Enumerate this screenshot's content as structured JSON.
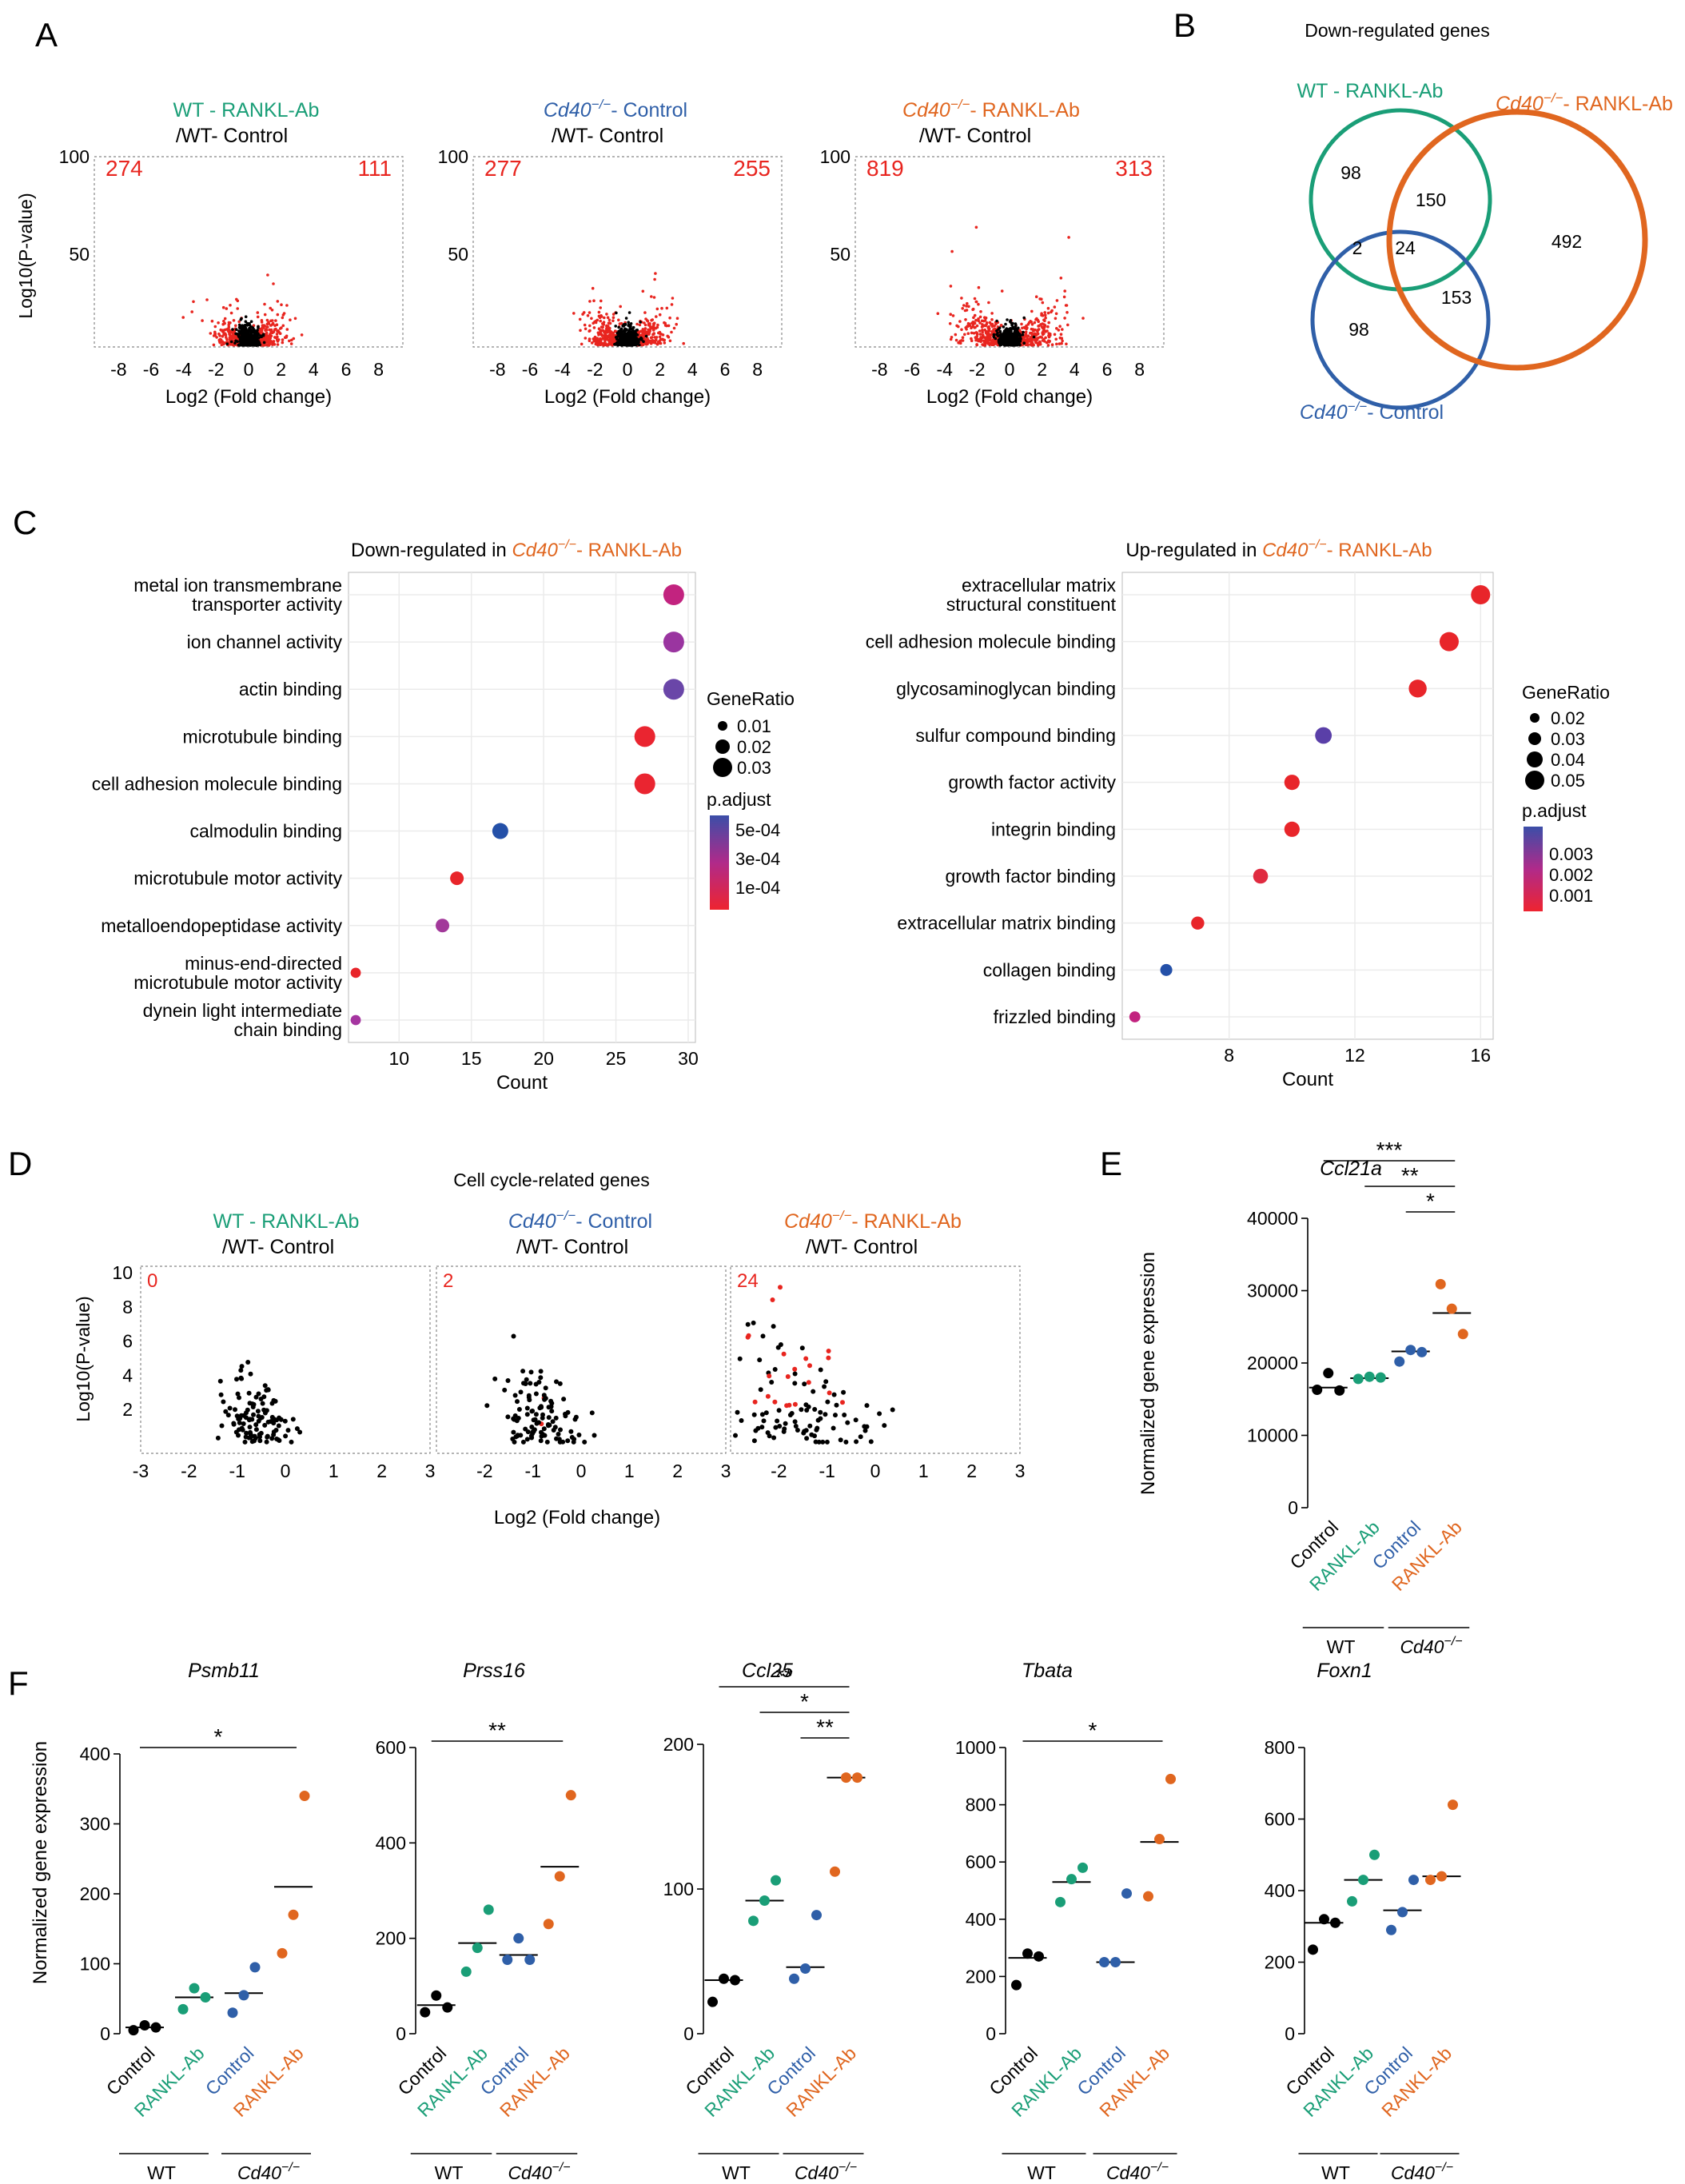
{
  "colors": {
    "wt_rankl": "#1a9e77",
    "cd40_ctrl": "#2f5fa8",
    "cd40_rankl": "#e0661f",
    "red": "#e8251f",
    "black": "#000000",
    "grid": "#ebebeb",
    "sig_line": "#000000"
  },
  "panels": {
    "A": "A",
    "B": "B",
    "C": "C",
    "D": "D",
    "E": "E",
    "F": "F"
  },
  "labels": {
    "wt_rankl": "WT - RANKL-Ab",
    "wt_ctrl_suffix": "/WT- Control",
    "cd40": "Cd40",
    "ko_sup": "−/−",
    "control_suffix": "- Control",
    "rankl_suffix": "- RANKL-Ab",
    "log2fc": "Log2 (Fold change)",
    "log10p_A": "Log10(P-value)",
    "log10p_D": "Log10(P-value)",
    "normalized": "Normalized gene expression",
    "control": "Control",
    "rankl_ab": "RANKL-Ab",
    "wt": "WT",
    "down_in": "Down-regulated in ",
    "up_in": "Up-regulated in ",
    "count": "Count",
    "gene_ratio": "GeneRatio",
    "p_adjust": "p.adjust",
    "venn_title": "Down-regulated genes",
    "cell_cycle_title": "Cell cycle-related genes"
  },
  "volcano_A": [
    {
      "left_count": "274",
      "right_count": "111"
    },
    {
      "left_count": "277",
      "right_count": "255"
    },
    {
      "left_count": "819",
      "right_count": "313"
    }
  ],
  "volcano_A_axis": {
    "x_ticks": [
      "-8",
      "-6",
      "-4",
      "-2",
      "0",
      "2",
      "4",
      "6",
      "8"
    ],
    "y_ticks": [
      "100",
      "50"
    ]
  },
  "venn": {
    "wt_only": "98",
    "wt_cd40rankl": "150",
    "cd40rankl_only": "492",
    "wt_ctrl": "2",
    "all_three": "24",
    "ctrl_cd40rankl": "153",
    "ctrl_only": "98"
  },
  "chart_data": [
    {
      "type": "scatter",
      "title": "Down-regulated in Cd40-/- - RANKL-Ab",
      "xlabel": "Count",
      "x_ticks": [
        "10",
        "15",
        "20",
        "25",
        "30"
      ],
      "xlim": [
        6.5,
        30.5
      ],
      "terms": [
        {
          "term": "metal ion transmembrane",
          "term2": "transporter activity",
          "count": 29,
          "ratio": 0.03,
          "color": "#c2237f"
        },
        {
          "term": "ion channel activity",
          "count": 29,
          "ratio": 0.03,
          "color": "#9a35a0"
        },
        {
          "term": "actin binding",
          "count": 29,
          "ratio": 0.03,
          "color": "#6a46a8"
        },
        {
          "term": "microtubule binding",
          "count": 27,
          "ratio": 0.03,
          "color": "#ea2530"
        },
        {
          "term": "cell adhesion molecule binding",
          "count": 27,
          "ratio": 0.03,
          "color": "#ea2530"
        },
        {
          "term": "calmodulin binding",
          "count": 17,
          "ratio": 0.02,
          "color": "#2450a8"
        },
        {
          "term": "microtubule motor activity",
          "count": 14,
          "ratio": 0.015,
          "color": "#e8252a"
        },
        {
          "term": "metalloendopeptidase activity",
          "count": 13,
          "ratio": 0.015,
          "color": "#a2389a"
        },
        {
          "term": "minus-end-directed",
          "term2": "microtubule motor activity",
          "count": 7,
          "ratio": 0.008,
          "color": "#e8252a"
        },
        {
          "term": "dynein light intermediate",
          "term2": "chain binding",
          "count": 7,
          "ratio": 0.008,
          "color": "#a535a0"
        }
      ],
      "legend_sizes": [
        "0.01",
        "0.02",
        "0.03"
      ],
      "legend_colors": [
        "5e-04",
        "3e-04",
        "1e-04"
      ]
    },
    {
      "type": "scatter",
      "title": "Up-regulated in Cd40-/- - RANKL-Ab",
      "xlabel": "Count",
      "x_ticks": [
        "8",
        "12",
        "16"
      ],
      "xlim": [
        4.6,
        16.4
      ],
      "terms": [
        {
          "term": "extracellular matrix",
          "term2": "structural constituent",
          "count": 16,
          "ratio": 0.05,
          "color": "#e8252a"
        },
        {
          "term": "cell adhesion molecule binding",
          "count": 15,
          "ratio": 0.05,
          "color": "#e8252a"
        },
        {
          "term": "glycosaminoglycan binding",
          "count": 14,
          "ratio": 0.045,
          "color": "#e8252a"
        },
        {
          "term": "sulfur compound binding",
          "count": 11,
          "ratio": 0.04,
          "color": "#5a3fa8"
        },
        {
          "term": "growth factor activity",
          "count": 10,
          "ratio": 0.035,
          "color": "#e8252a"
        },
        {
          "term": "integrin binding",
          "count": 10,
          "ratio": 0.035,
          "color": "#e8252a"
        },
        {
          "term": "growth factor binding",
          "count": 9,
          "ratio": 0.033,
          "color": "#e02b40"
        },
        {
          "term": "extracellular matrix binding",
          "count": 7,
          "ratio": 0.026,
          "color": "#e8252a"
        },
        {
          "term": "collagen binding",
          "count": 6,
          "ratio": 0.022,
          "color": "#2450a8"
        },
        {
          "term": "frizzled binding",
          "count": 5,
          "ratio": 0.018,
          "color": "#c2237f"
        }
      ],
      "legend_sizes": [
        "0.02",
        "0.03",
        "0.04",
        "0.05"
      ],
      "legend_colors": [
        "0.003",
        "0.002",
        "0.001"
      ]
    },
    {
      "type": "strip",
      "gene": "Ccl21a",
      "ylabel": "Normalized gene expression",
      "ylim": [
        0,
        40000
      ],
      "y_ticks": [
        0,
        10000,
        20000,
        30000,
        40000
      ],
      "groups": [
        {
          "name": "Control",
          "genotype": "WT",
          "values": [
            16300,
            18600,
            16200
          ],
          "mean": 16600,
          "color": "#000000"
        },
        {
          "name": "RANKL-Ab",
          "genotype": "WT",
          "values": [
            17800,
            18100,
            18000
          ],
          "mean": 17900,
          "color": "#1a9e77"
        },
        {
          "name": "Control",
          "genotype": "Cd40-/-",
          "values": [
            20200,
            21800,
            21500
          ],
          "mean": 21600,
          "color": "#2f5fa8"
        },
        {
          "name": "RANKL-Ab",
          "genotype": "Cd40-/-",
          "values": [
            30900,
            27500,
            24000
          ],
          "mean": 26900,
          "color": "#e0661f"
        }
      ],
      "sig": [
        {
          "from": 0,
          "to": 3,
          "label": "***"
        },
        {
          "from": 1,
          "to": 3,
          "label": "**"
        },
        {
          "from": 2,
          "to": 3,
          "label": "*"
        }
      ]
    },
    {
      "type": "strip",
      "gene": "Psmb11",
      "ylim": [
        0,
        400
      ],
      "y_ticks": [
        0,
        100,
        200,
        300,
        400
      ],
      "groups": [
        {
          "name": "Control",
          "values": [
            5,
            12,
            9
          ],
          "mean": 9,
          "color": "#000000"
        },
        {
          "name": "RANKL-Ab",
          "values": [
            35,
            65,
            52
          ],
          "mean": 52,
          "color": "#1a9e77"
        },
        {
          "name": "Control",
          "values": [
            30,
            55,
            95
          ],
          "mean": 58,
          "color": "#2f5fa8"
        },
        {
          "name": "RANKL-Ab",
          "values": [
            115,
            170,
            340
          ],
          "mean": 210,
          "color": "#e0661f"
        }
      ],
      "sig": [
        {
          "from": 0,
          "to": 3,
          "label": "*"
        }
      ]
    },
    {
      "type": "strip",
      "gene": "Prss16",
      "ylim": [
        0,
        600
      ],
      "y_ticks": [
        0,
        200,
        400,
        600
      ],
      "groups": [
        {
          "name": "Control",
          "values": [
            45,
            80,
            55
          ],
          "mean": 60,
          "color": "#000000"
        },
        {
          "name": "RANKL-Ab",
          "values": [
            130,
            180,
            260
          ],
          "mean": 190,
          "color": "#1a9e77"
        },
        {
          "name": "Control",
          "values": [
            155,
            200,
            155
          ],
          "mean": 165,
          "color": "#2f5fa8"
        },
        {
          "name": "RANKL-Ab",
          "values": [
            230,
            330,
            500
          ],
          "mean": 350,
          "color": "#e0661f"
        }
      ],
      "sig": [
        {
          "from": 0,
          "to": 3,
          "label": "**"
        }
      ]
    },
    {
      "type": "strip",
      "gene": "Ccl25",
      "ylim": [
        0,
        200
      ],
      "y_ticks": [
        0,
        100,
        200
      ],
      "groups": [
        {
          "name": "Control",
          "values": [
            22,
            38,
            37
          ],
          "mean": 37,
          "color": "#000000"
        },
        {
          "name": "RANKL-Ab",
          "values": [
            78,
            92,
            106
          ],
          "mean": 92,
          "color": "#1a9e77"
        },
        {
          "name": "Control",
          "values": [
            38,
            45,
            82
          ],
          "mean": 46,
          "color": "#2f5fa8"
        },
        {
          "name": "RANKL-Ab",
          "values": [
            112,
            177,
            177
          ],
          "mean": 177,
          "color": "#e0661f"
        }
      ],
      "sig": [
        {
          "from": 0,
          "to": 3,
          "label": "**"
        },
        {
          "from": 1,
          "to": 3,
          "label": "*"
        },
        {
          "from": 2,
          "to": 3,
          "label": "**"
        }
      ]
    },
    {
      "type": "strip",
      "gene": "Tbata",
      "ylim": [
        0,
        1000
      ],
      "y_ticks": [
        0,
        200,
        400,
        600,
        800,
        1000
      ],
      "groups": [
        {
          "name": "Control",
          "values": [
            170,
            280,
            270
          ],
          "mean": 265,
          "color": "#000000"
        },
        {
          "name": "RANKL-Ab",
          "values": [
            460,
            540,
            580
          ],
          "mean": 530,
          "color": "#1a9e77"
        },
        {
          "name": "Control",
          "values": [
            250,
            250,
            490
          ],
          "mean": 250,
          "color": "#2f5fa8"
        },
        {
          "name": "RANKL-Ab",
          "values": [
            480,
            680,
            890
          ],
          "mean": 670,
          "color": "#e0661f"
        }
      ],
      "sig": [
        {
          "from": 0,
          "to": 3,
          "label": "*"
        }
      ]
    },
    {
      "type": "strip",
      "gene": "Foxn1",
      "ylim": [
        0,
        800
      ],
      "y_ticks": [
        0,
        200,
        400,
        600,
        800
      ],
      "groups": [
        {
          "name": "Control",
          "values": [
            235,
            320,
            310
          ],
          "mean": 310,
          "color": "#000000"
        },
        {
          "name": "RANKL-Ab",
          "values": [
            370,
            430,
            500
          ],
          "mean": 430,
          "color": "#1a9e77"
        },
        {
          "name": "Control",
          "values": [
            290,
            340,
            430
          ],
          "mean": 345,
          "color": "#2f5fa8"
        },
        {
          "name": "RANKL-Ab",
          "values": [
            430,
            440,
            640
          ],
          "mean": 440,
          "color": "#e0661f"
        }
      ],
      "sig": []
    }
  ],
  "cell_cycle_D": [
    {
      "count": "0"
    },
    {
      "count": "2"
    },
    {
      "count": "24"
    }
  ],
  "cell_cycle_axis": {
    "x_ticks": [
      "-3",
      "-2",
      "-1",
      "0",
      "1",
      "2",
      "3"
    ],
    "y_ticks": [
      "10",
      "8",
      "6",
      "4",
      "2"
    ]
  }
}
